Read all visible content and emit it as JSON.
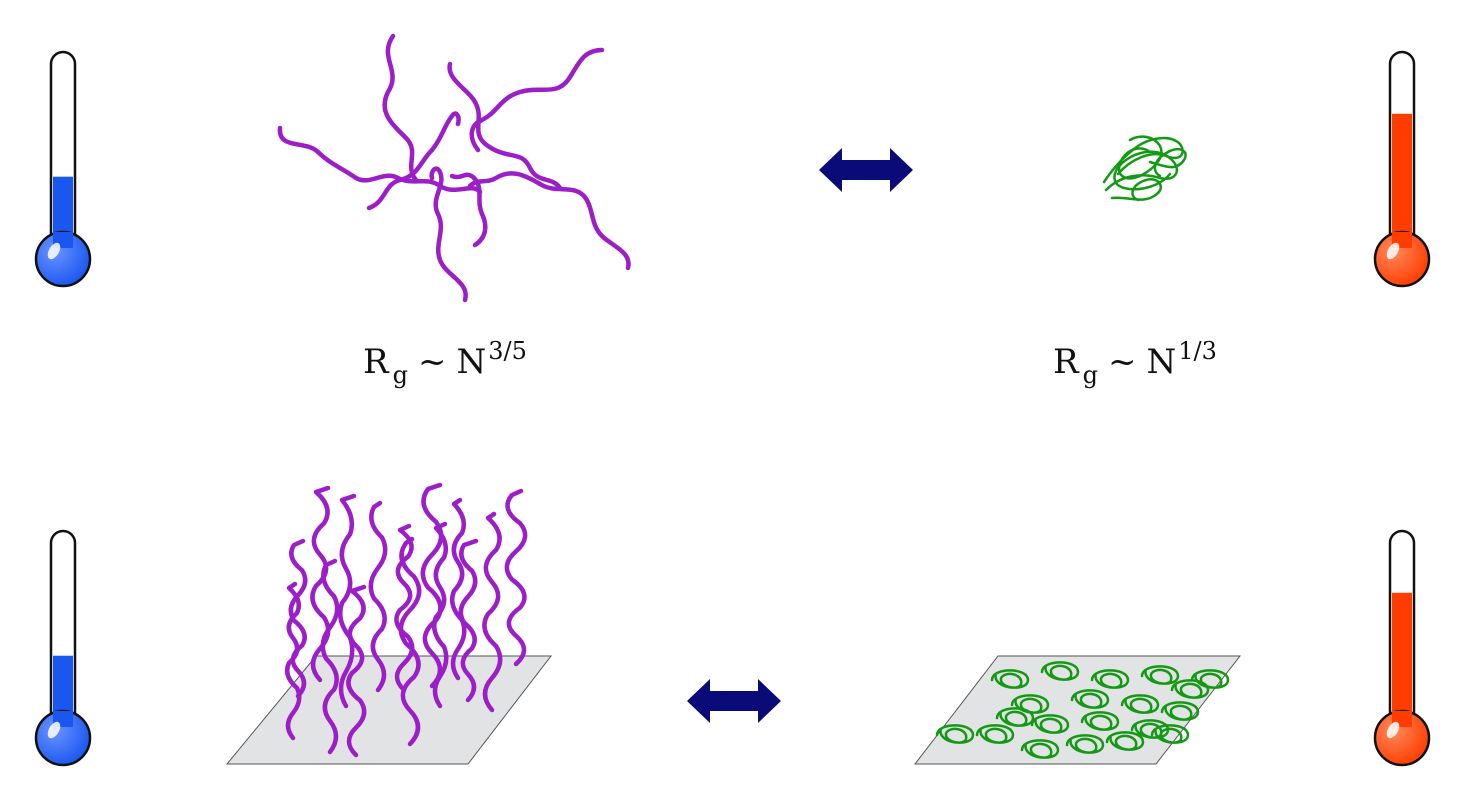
{
  "colors": {
    "cold_fluid": "#1a56f0",
    "hot_fluid": "#ff3d00",
    "extended_chain": "#9b1ec8",
    "collapsed_chain": "#149914",
    "arrow": "#0a0a78",
    "substrate": "#e2e3e4"
  },
  "icons": {
    "cold": "thermometer-cold-icon",
    "hot": "thermometer-hot-icon",
    "arrow": "double-arrow-icon"
  },
  "temperature_levels": {
    "top_cold": 0.38,
    "top_hot": 0.72,
    "bottom_cold": 0.38,
    "bottom_hot": 0.72
  },
  "formulas": {
    "coil": {
      "base": "R",
      "sub": "g",
      "op": "~",
      "var": "N",
      "exp": "3/5"
    },
    "globule": {
      "base": "R",
      "sub": "g",
      "op": "~",
      "var": "N",
      "exp": "1/3"
    }
  }
}
